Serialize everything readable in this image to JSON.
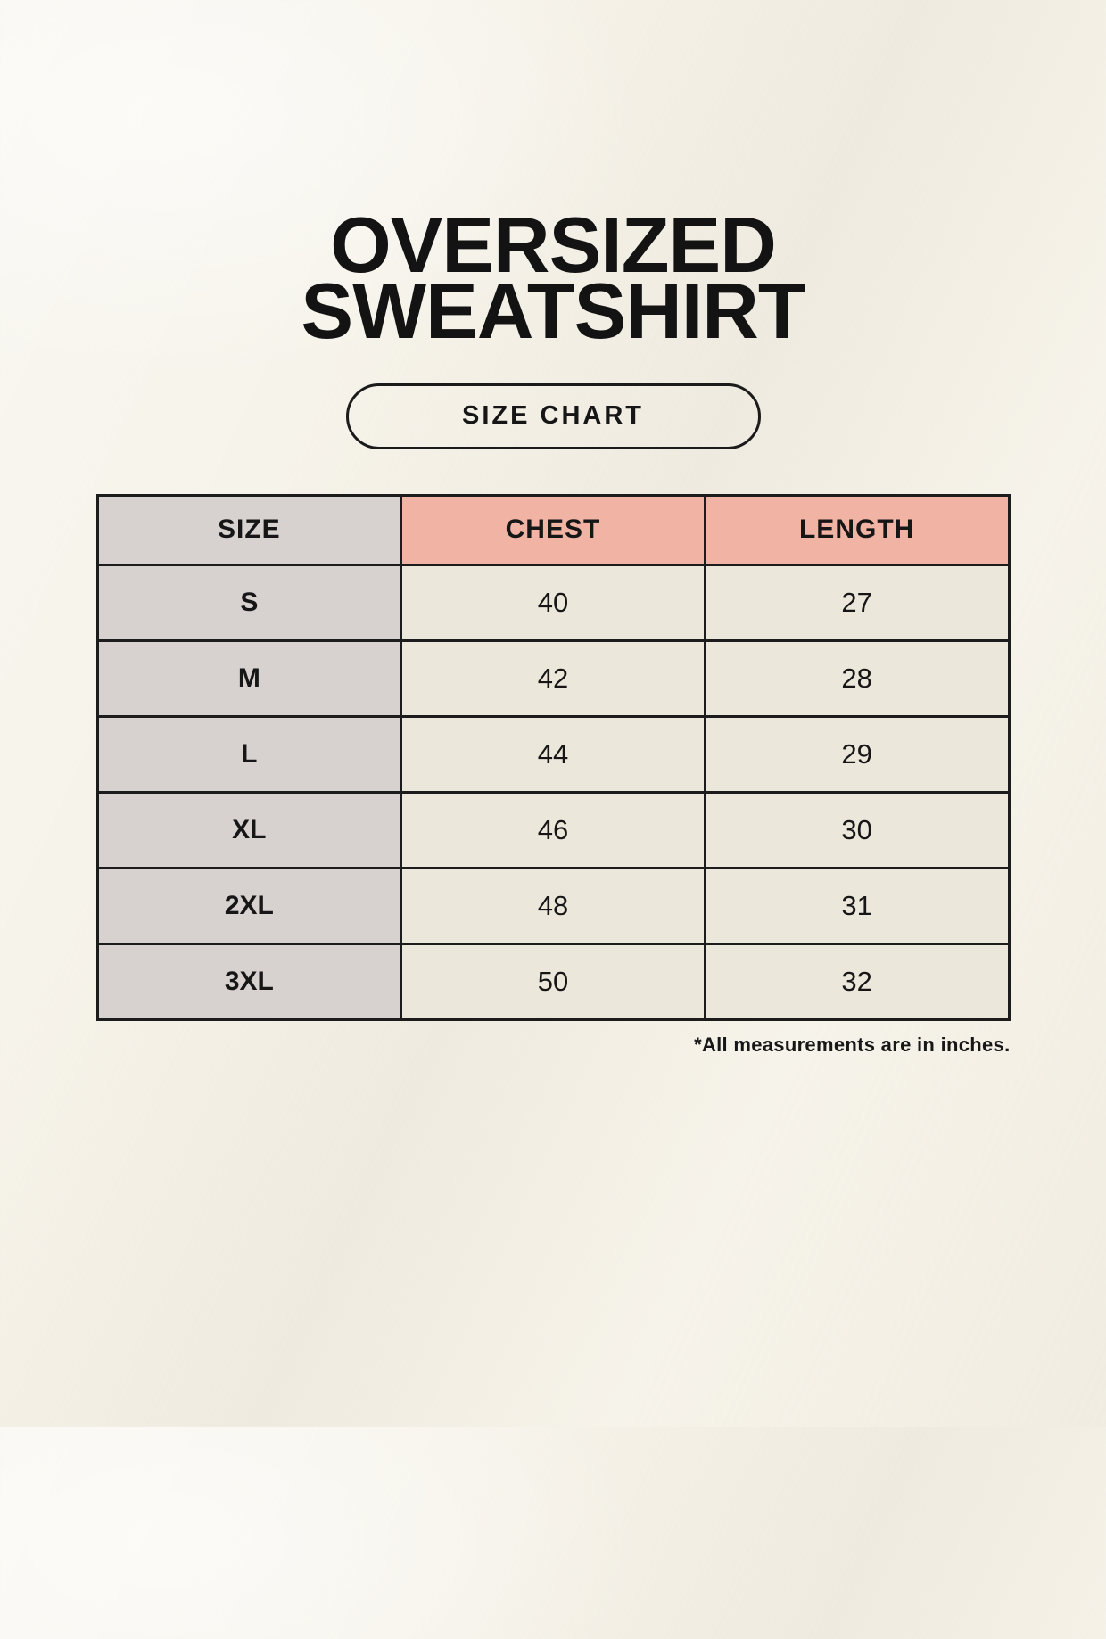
{
  "page": {
    "background_color": "#f6f3ea",
    "accent_pink": "#f1b4a4",
    "accent_gray": "#d7d1d0",
    "cell_cream": "#ece7db",
    "border_color": "#1c1c1c"
  },
  "title": {
    "line1": "OVERSIZED",
    "line2": "SWEATSHIRT"
  },
  "size_chart_button": {
    "label": "SIZE CHART"
  },
  "table": {
    "columns": [
      "SIZE",
      "CHEST",
      "LENGTH"
    ],
    "rows": [
      {
        "size": "S",
        "chest": "40",
        "length": "27"
      },
      {
        "size": "M",
        "chest": "42",
        "length": "28"
      },
      {
        "size": "L",
        "chest": "44",
        "length": "29"
      },
      {
        "size": "XL",
        "chest": "46",
        "length": "30"
      },
      {
        "size": "2XL",
        "chest": "48",
        "length": "31"
      },
      {
        "size": "3XL",
        "chest": "50",
        "length": "32"
      }
    ]
  },
  "footnote": {
    "text": "*All measurements are in inches."
  },
  "chart_data": {
    "type": "table",
    "title": "OVERSIZED SWEATSHIRT SIZE CHART",
    "columns": [
      "SIZE",
      "CHEST",
      "LENGTH"
    ],
    "rows": [
      [
        "S",
        40,
        27
      ],
      [
        "M",
        42,
        28
      ],
      [
        "L",
        44,
        29
      ],
      [
        "XL",
        46,
        30
      ],
      [
        "2XL",
        48,
        31
      ],
      [
        "3XL",
        50,
        32
      ]
    ],
    "units_note": "*All measurements are in inches."
  }
}
